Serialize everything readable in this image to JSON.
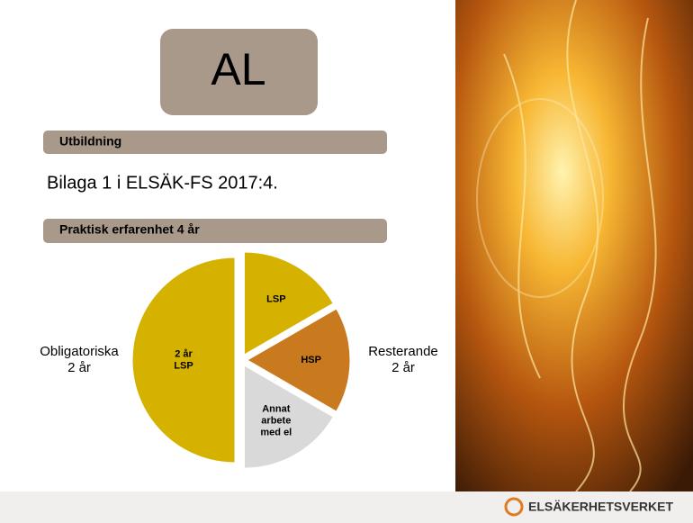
{
  "slide": {
    "title": "AL",
    "section1": "Utbildning",
    "body": "Bilaga 1 i ELSÄK-FS 2017:4.",
    "section2": "Praktisk erfarenhet 4 år",
    "logo": "ELSÄKERHETSVERKET"
  },
  "chart_data": {
    "type": "pie",
    "categories": [
      "LSP",
      "HSP",
      "Annat\narbete\nmed el",
      "2 år\nLSP"
    ],
    "values": [
      16.67,
      16.67,
      16.66,
      50
    ],
    "colors": [
      "#d6b200",
      "#c97a1f",
      "#d9d9d9",
      "#d6b200"
    ],
    "annotations": [
      "Obligatoriska\n2 år",
      "Resterande\n2 år"
    ]
  }
}
